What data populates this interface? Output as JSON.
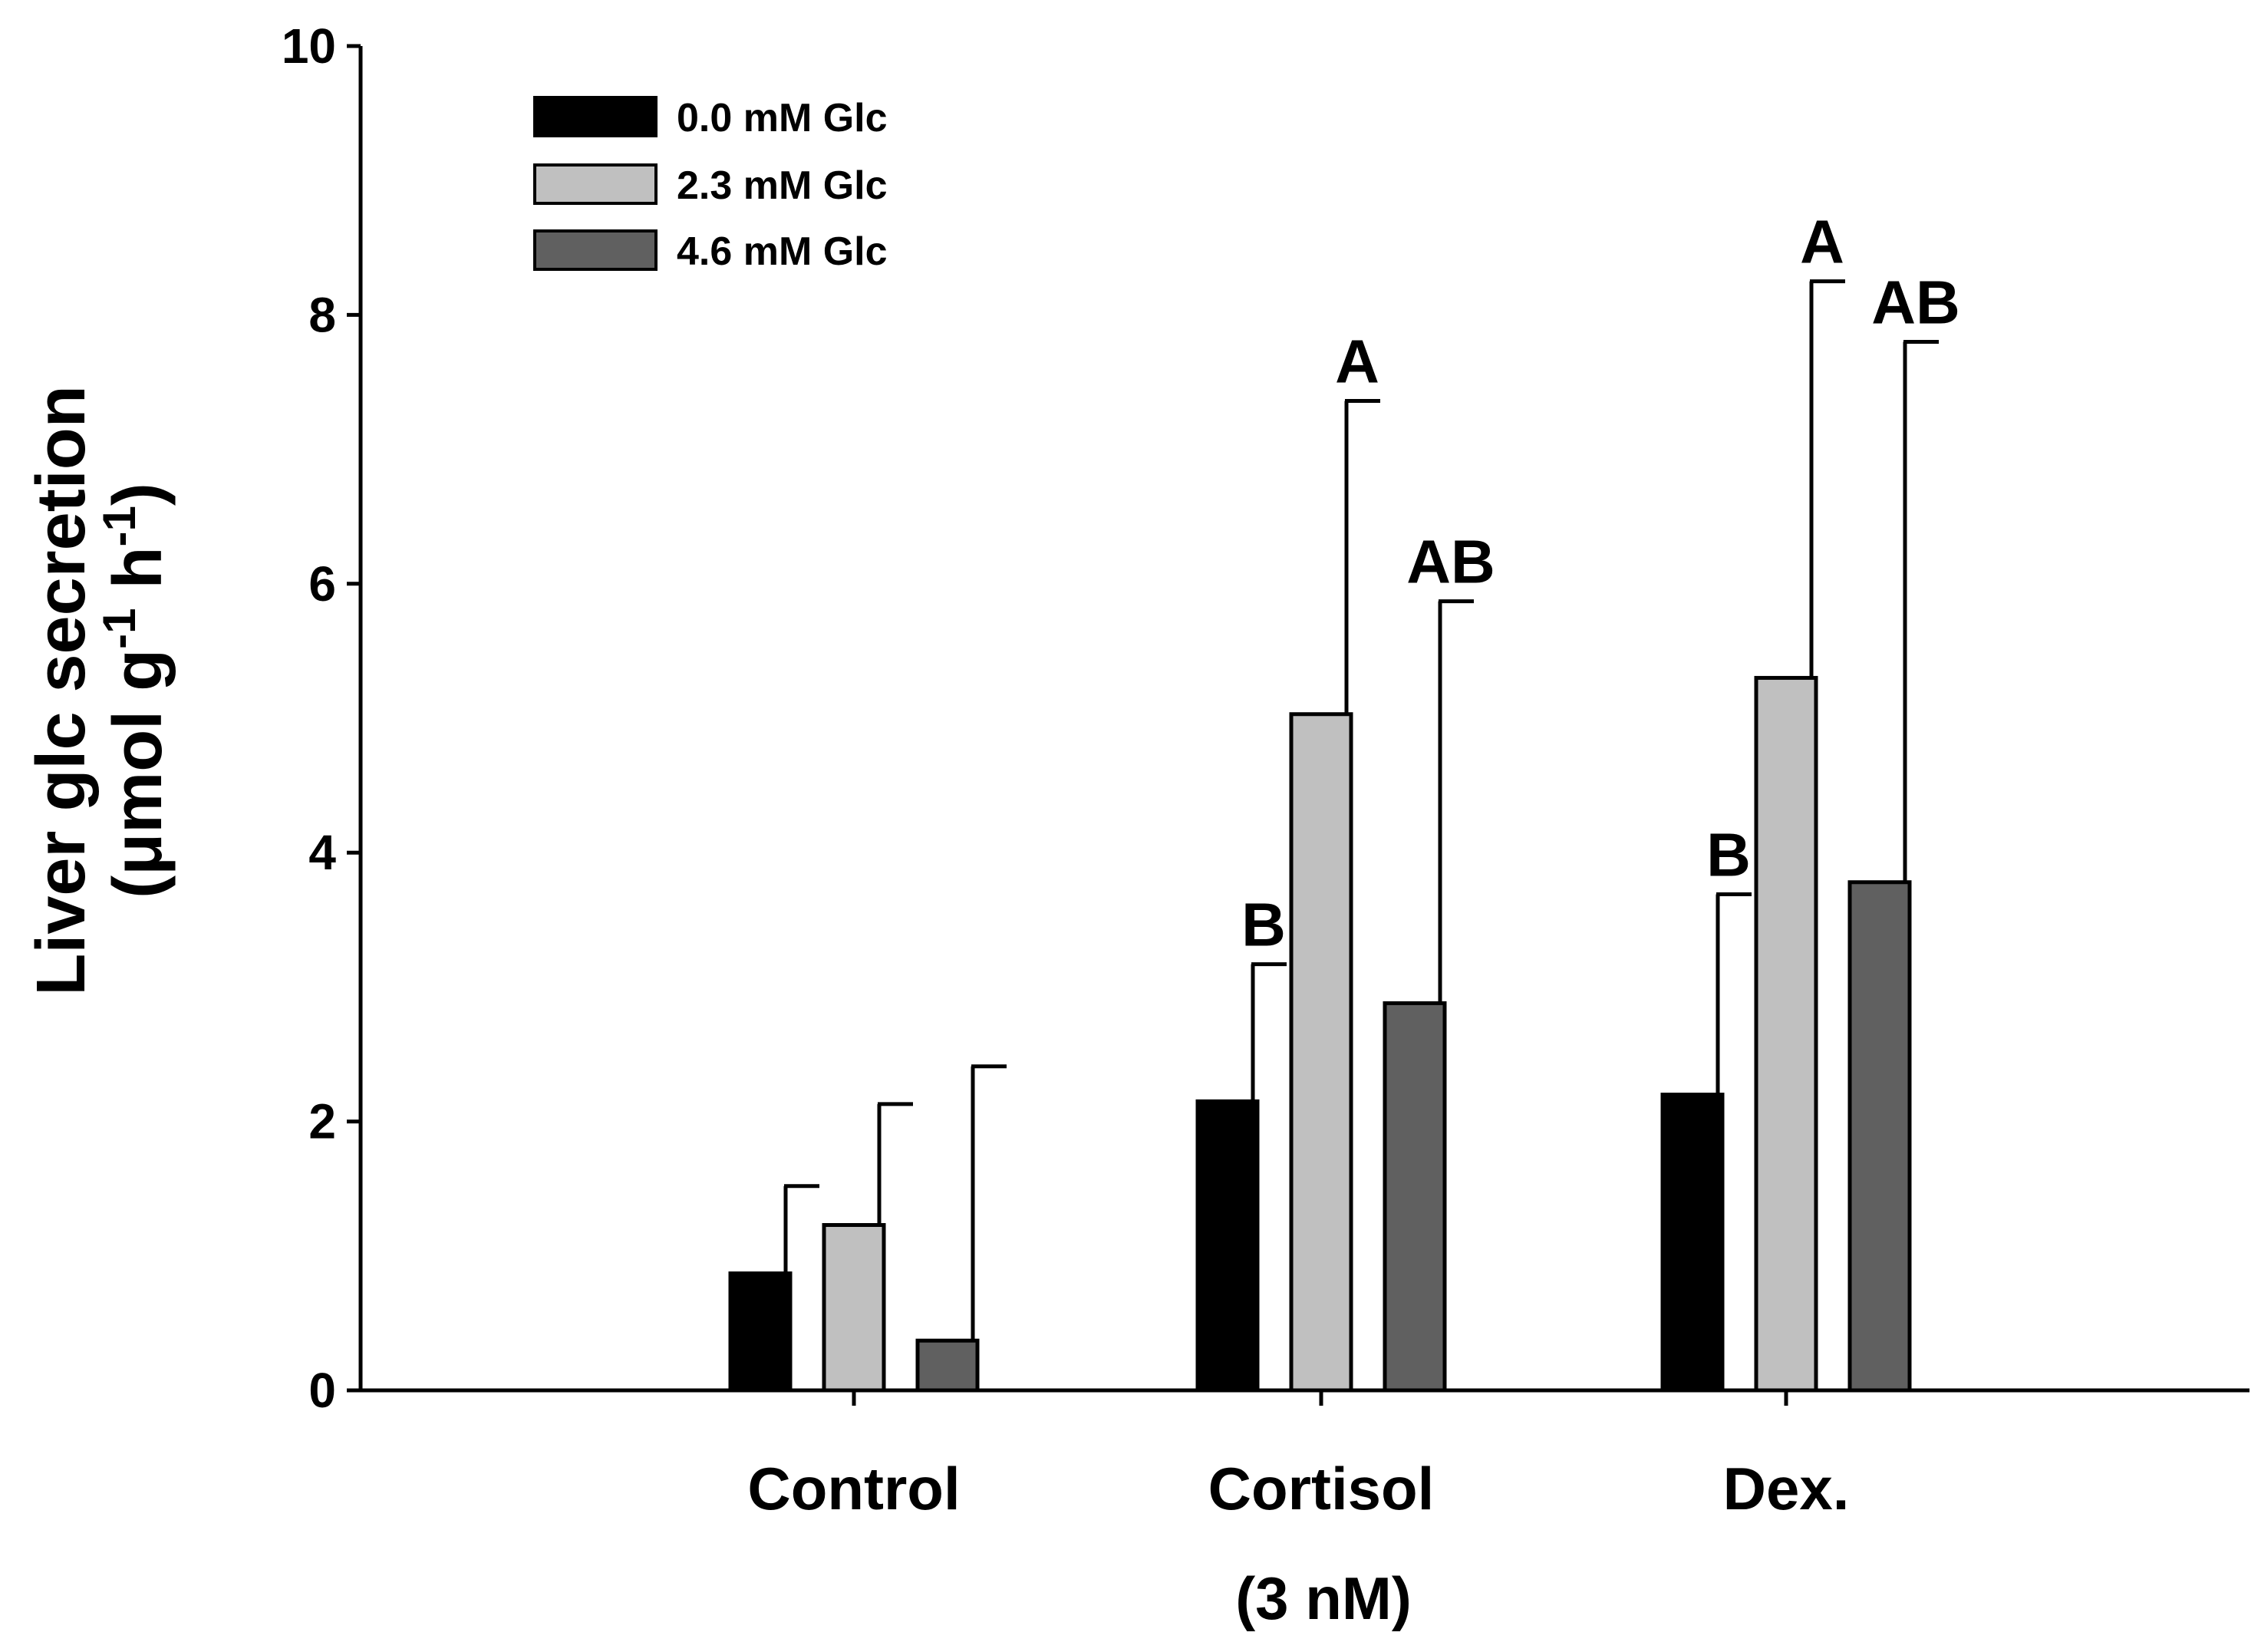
{
  "chart_data": {
    "type": "bar",
    "ylabel": {
      "line1": "Liver glc secretion",
      "line2_prefix": "(μmol g",
      "line2_sup1": "-1",
      "line2_mid": " h",
      "line2_sup2": "-1",
      "line2_suffix": ")"
    },
    "xlabel": "(3 nM)",
    "ylim": [
      0,
      10
    ],
    "yticks": [
      "0",
      "2",
      "4",
      "6",
      "8",
      "10"
    ],
    "yticks_values": [
      0,
      2,
      4,
      6,
      8,
      10
    ],
    "categories": [
      "Control",
      "Cortisol",
      "Dex."
    ],
    "series": [
      {
        "name": "0.0 mM Glc",
        "color": "#000000",
        "values": [
          0.87,
          2.15,
          2.2
        ],
        "error_upper": [
          1.52,
          3.17,
          3.69
        ],
        "significance": [
          "",
          "B",
          "B"
        ]
      },
      {
        "name": "2.3 mM Glc",
        "color": "#c0c0c0",
        "values": [
          1.23,
          5.03,
          5.3
        ],
        "error_upper": [
          2.13,
          7.36,
          8.25
        ],
        "significance": [
          "",
          "A",
          "A"
        ]
      },
      {
        "name": "4.6 mM Glc",
        "color": "#606060",
        "values": [
          0.37,
          2.88,
          3.78
        ],
        "error_upper": [
          2.41,
          5.87,
          7.8
        ],
        "significance": [
          "",
          "AB",
          "AB"
        ]
      }
    ],
    "legend_position": "top-left",
    "grid": false
  }
}
